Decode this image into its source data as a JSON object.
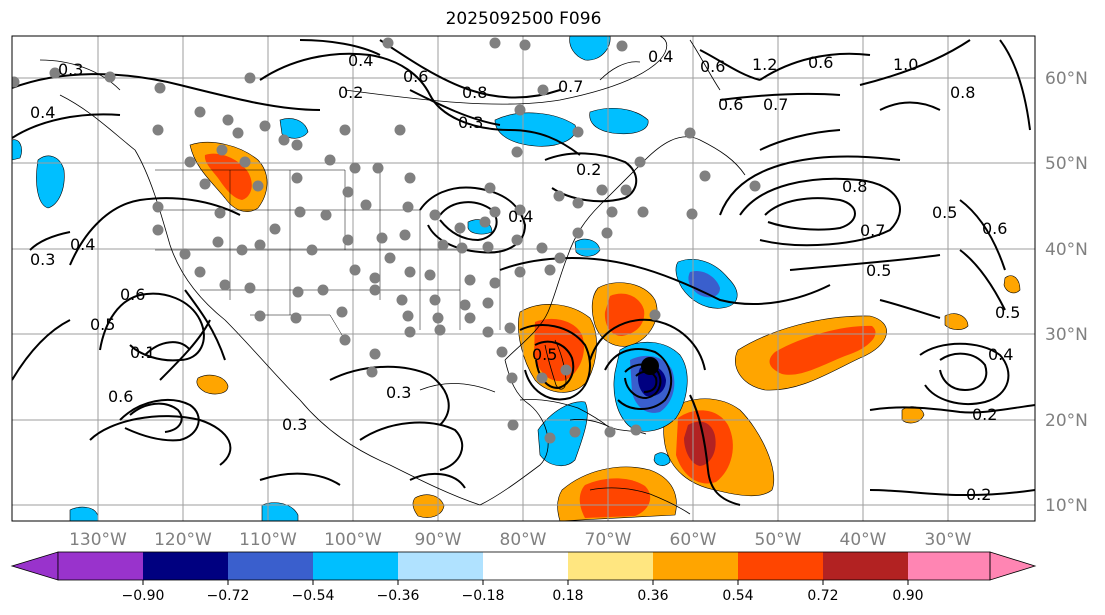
{
  "title": "2025092500 F096",
  "map": {
    "projection": "cylindrical",
    "lon_ticks": [
      "130°W",
      "120°W",
      "110°W",
      "100°W",
      "90°W",
      "80°W",
      "70°W",
      "60°W",
      "50°W",
      "40°W",
      "30°W"
    ],
    "lat_ticks": [
      "60°N",
      "50°N",
      "40°N",
      "30°N",
      "20°N",
      "10°N"
    ],
    "grid": true,
    "colors": {
      "grid": "#9e9e9e",
      "coast": "#000000",
      "station": "#808080",
      "storm_center": "#000000"
    }
  },
  "contour_labels": [
    "0.3",
    "0.4",
    "0.4",
    "0.2",
    "0.6",
    "0.8",
    "0.7",
    "0.3",
    "0.4",
    "0.6",
    "1.2",
    "0.6",
    "1.0",
    "0.8",
    "0.6",
    "0.7",
    "0.2",
    "0.4",
    "0.8",
    "0.5",
    "0.6",
    "0.7",
    "0.5",
    "0.3",
    "0.4",
    "0.5",
    "0.6",
    "0.6",
    "0.3",
    "0.3",
    "0.5",
    "0.4",
    "0.2",
    "0.2",
    "0.5",
    "0.1"
  ],
  "colorbar": {
    "ticks": [
      "−0.90",
      "−0.72",
      "−0.54",
      "−0.36",
      "−0.18",
      "0.18",
      "0.36",
      "0.54",
      "0.72",
      "0.90"
    ],
    "colors": [
      "#9933cc",
      "#000080",
      "#3a5fcd",
      "#00bfff",
      "#b0e2ff",
      "#ffffff",
      "#ffe680",
      "#ffa500",
      "#ff4500",
      "#b22222",
      "#ff85b3"
    ],
    "extend": "both"
  }
}
